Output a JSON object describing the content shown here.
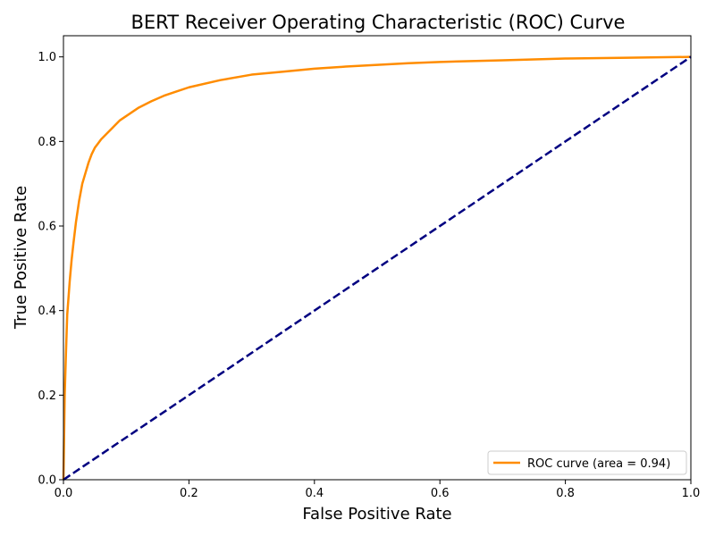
{
  "chart_data": {
    "type": "line",
    "title": "BERT Receiver Operating Characteristic (ROC) Curve",
    "xlabel": "False Positive Rate",
    "ylabel": "True Positive Rate",
    "xlim": [
      0.0,
      1.0
    ],
    "ylim": [
      0.0,
      1.05
    ],
    "xticks": [
      0.0,
      0.2,
      0.4,
      0.6,
      0.8,
      1.0
    ],
    "yticks": [
      0.0,
      0.2,
      0.4,
      0.6,
      0.8,
      1.0
    ],
    "xtick_labels": [
      "0.0",
      "0.2",
      "0.4",
      "0.6",
      "0.8",
      "1.0"
    ],
    "ytick_labels": [
      "0.0",
      "0.2",
      "0.4",
      "0.6",
      "0.8",
      "1.0"
    ],
    "grid": false,
    "legend_position": "lower-right",
    "series": [
      {
        "name": "ROC curve (area = 0.94)",
        "color": "#ff8c00",
        "style": "solid",
        "x": [
          0.0,
          0.002,
          0.004,
          0.006,
          0.008,
          0.01,
          0.013,
          0.016,
          0.02,
          0.025,
          0.03,
          0.035,
          0.04,
          0.045,
          0.05,
          0.055,
          0.06,
          0.07,
          0.08,
          0.09,
          0.1,
          0.12,
          0.14,
          0.16,
          0.18,
          0.2,
          0.25,
          0.3,
          0.35,
          0.4,
          0.45,
          0.5,
          0.55,
          0.6,
          0.7,
          0.8,
          0.9,
          1.0
        ],
        "y": [
          0.0,
          0.2,
          0.3,
          0.39,
          0.43,
          0.47,
          0.52,
          0.56,
          0.61,
          0.66,
          0.7,
          0.725,
          0.75,
          0.77,
          0.785,
          0.795,
          0.805,
          0.82,
          0.835,
          0.85,
          0.86,
          0.88,
          0.895,
          0.908,
          0.918,
          0.928,
          0.945,
          0.958,
          0.965,
          0.972,
          0.977,
          0.981,
          0.985,
          0.988,
          0.992,
          0.996,
          0.998,
          1.0
        ]
      },
      {
        "name": "",
        "color": "#000080",
        "style": "dashed",
        "x": [
          0.0,
          1.0
        ],
        "y": [
          0.0,
          1.0
        ]
      }
    ],
    "legend": [
      {
        "label": "ROC curve (area = 0.94)",
        "color": "#ff8c00"
      }
    ]
  }
}
